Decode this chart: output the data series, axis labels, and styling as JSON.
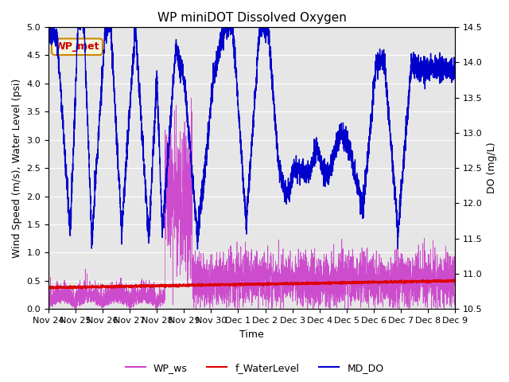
{
  "title": "WP miniDOT Dissolved Oxygen",
  "xlabel": "Time",
  "ylabel_left": "Wind Speed (m/s), Water Level (psi)",
  "ylabel_right": "DO (mg/L)",
  "ylim_left": [
    0.0,
    5.0
  ],
  "ylim_right": [
    10.5,
    14.5
  ],
  "background_color": "#ffffff",
  "plot_bg_color": "#e6e6e6",
  "annotation_text": "WP_met",
  "annotation_color": "#cc0000",
  "annotation_bg": "#f5f5dc",
  "annotation_border": "#cc8800",
  "legend_labels": [
    "WP_ws",
    "f_WaterLevel",
    "MD_DO"
  ],
  "legend_colors": [
    "#cc44cc",
    "#dd0000",
    "#0000cc"
  ],
  "wp_ws_color": "#cc44cc",
  "water_level_color": "#dd0000",
  "md_do_color": "#0000cc",
  "x_tick_labels": [
    "Nov 24",
    "Nov 25",
    "Nov 26",
    "Nov 27",
    "Nov 28",
    "Nov 29",
    "Nov 30",
    "Dec 1",
    "Dec 2",
    "Dec 3",
    "Dec 4",
    "Dec 5",
    "Dec 6",
    "Dec 7",
    "Dec 8",
    "Dec 9"
  ],
  "yticks_left": [
    0.0,
    0.5,
    1.0,
    1.5,
    2.0,
    2.5,
    3.0,
    3.5,
    4.0,
    4.5,
    5.0
  ],
  "yticks_right": [
    10.5,
    11.0,
    11.5,
    12.0,
    12.5,
    13.0,
    13.5,
    14.0,
    14.5
  ],
  "title_fontsize": 11,
  "axis_label_fontsize": 9,
  "tick_fontsize": 8
}
